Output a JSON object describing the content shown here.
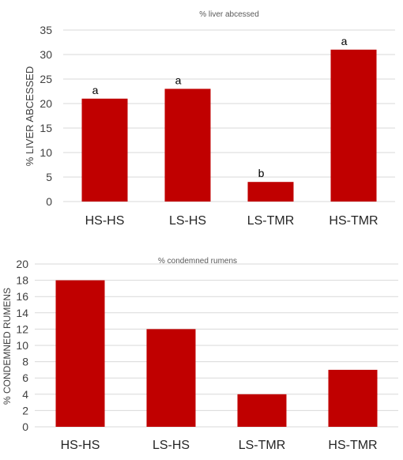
{
  "chart_data": [
    {
      "type": "bar",
      "title": "% liver abcessed",
      "ylabel": "% LIVER ABCESSED",
      "xlabel": "",
      "categories": [
        "HS-HS",
        "LS-HS",
        "LS-TMR",
        "HS-TMR"
      ],
      "values": [
        21,
        23,
        4,
        31
      ],
      "data_labels": [
        "a",
        "a",
        "b",
        "a"
      ],
      "ylim": [
        0,
        35
      ],
      "yticks": [
        0,
        5,
        10,
        15,
        20,
        25,
        30,
        35
      ],
      "grid": true,
      "legend": "none",
      "bar_color": "#C00000"
    },
    {
      "type": "bar",
      "title": "% condemned rumens",
      "ylabel": "% CONDEMNED RUMENS",
      "xlabel": "",
      "categories": [
        "HS-HS",
        "LS-HS",
        "LS-TMR",
        "HS-TMR"
      ],
      "values": [
        18,
        12,
        4,
        7
      ],
      "ylim": [
        0,
        20
      ],
      "yticks": [
        0,
        2,
        4,
        6,
        8,
        10,
        12,
        14,
        16,
        18,
        20
      ],
      "grid": true,
      "legend": "none",
      "bar_color": "#C00000"
    }
  ]
}
